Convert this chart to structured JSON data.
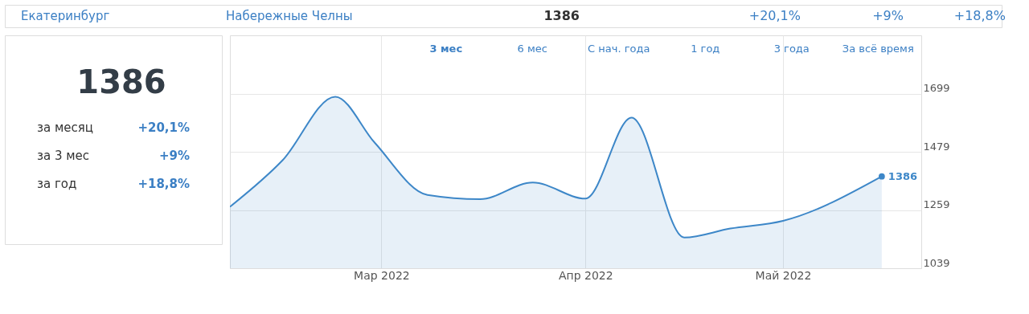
{
  "chart_data": [
    {
      "type": "other",
      "annotations": [
        "Екатеринбург",
        "Набережные Челны",
        "1386",
        "+20,1%",
        "+9%",
        "+18,8%"
      ]
    },
    {
      "type": "other",
      "annotations": [
        "1386",
        "за месяц",
        "+20,1%",
        "за 3 мес",
        "+9%",
        "за год",
        "+18,8%"
      ]
    },
    {
      "type": "area",
      "x": [
        "2022-02-06",
        "2022-02-14",
        "2022-02-22",
        "2022-02-28",
        "2022-03-08",
        "2022-03-16",
        "2022-03-24",
        "2022-04-01",
        "2022-04-08",
        "2022-04-16",
        "2022-04-23",
        "2022-05-01",
        "2022-05-16"
      ],
      "values": [
        1271,
        1447,
        1687,
        1513,
        1316,
        1300,
        1363,
        1302,
        1608,
        1155,
        1189,
        1218,
        1386
      ],
      "color": "#3d87c8",
      "xlim": [
        "2022-02-06",
        "2022-05-22"
      ],
      "xticks": [
        {
          "value": "2022-03-01",
          "label": "Мар 2022"
        },
        {
          "value": "2022-04-01",
          "label": "Апр 2022"
        },
        {
          "value": "2022-05-01",
          "label": "Май 2022"
        }
      ],
      "ylim": [
        1039,
        1919
      ],
      "yticks": [
        1039,
        1259,
        1479,
        1699
      ],
      "grid": true,
      "value_labels": [
        null,
        null,
        null,
        null,
        null,
        null,
        null,
        null,
        null,
        null,
        null,
        null,
        "1386"
      ],
      "annotations": [
        "3 мес",
        "6 мес",
        "С нач. года",
        "1 год",
        "3 года",
        "За всё время"
      ]
    }
  ]
}
